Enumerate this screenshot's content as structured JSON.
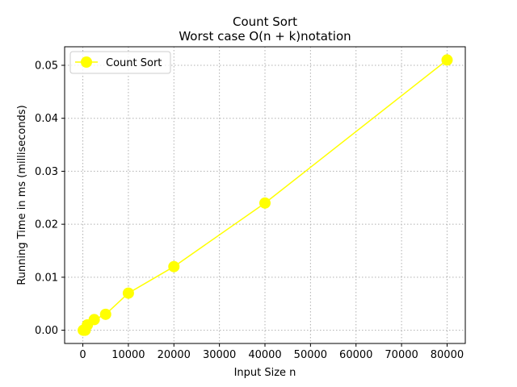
{
  "chart_data": {
    "type": "line",
    "title": "Count Sort",
    "subtitle": "Worst case O(n + k)notation",
    "xlabel": "Input Size n",
    "ylabel": "Running Time in ms (milliseconds)",
    "xlim": [
      -4000,
      84000
    ],
    "ylim": [
      -0.0025,
      0.0535
    ],
    "x_ticks": [
      0,
      10000,
      20000,
      30000,
      40000,
      50000,
      60000,
      70000,
      80000
    ],
    "x_tick_labels": [
      "0",
      "10000",
      "20000",
      "30000",
      "40000",
      "50000",
      "60000",
      "70000",
      "80000"
    ],
    "y_ticks": [
      0,
      0.01,
      0.02,
      0.03,
      0.04,
      0.05
    ],
    "y_tick_labels": [
      "0.00",
      "0.01",
      "0.02",
      "0.03",
      "0.04",
      "0.05"
    ],
    "grid": true,
    "legend_position": "top-left",
    "series": [
      {
        "name": "Count Sort",
        "color": "#ffff00",
        "marker": "circle",
        "x": [
          100,
          500,
          1000,
          2500,
          5000,
          10000,
          20000,
          40000,
          80000
        ],
        "y": [
          0.0,
          0.0,
          0.001,
          0.002,
          0.003,
          0.007,
          0.012,
          0.024,
          0.051
        ]
      }
    ]
  }
}
